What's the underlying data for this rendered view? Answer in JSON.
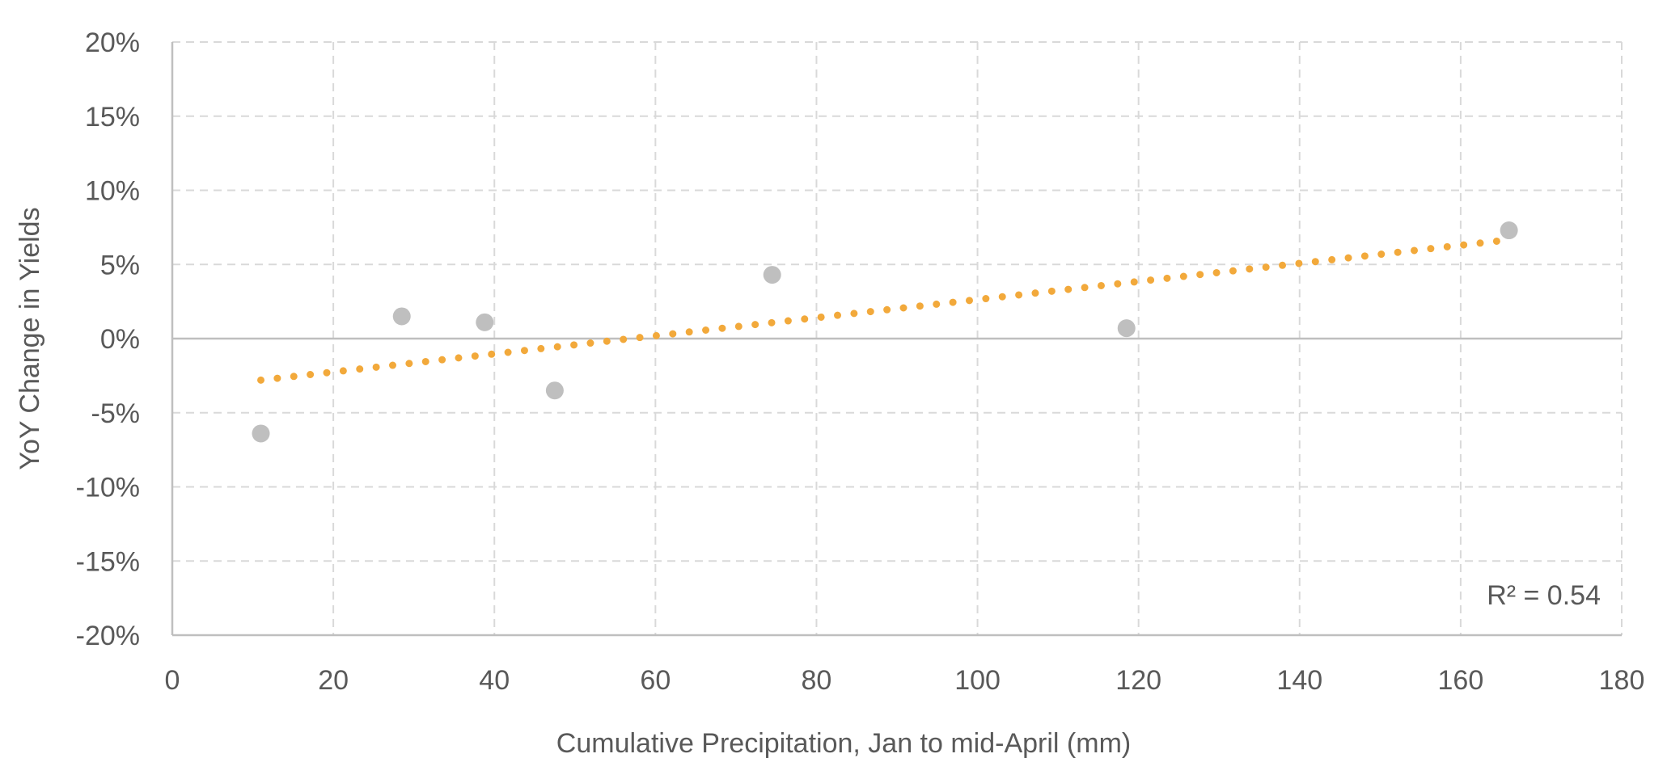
{
  "chart_data": {
    "type": "scatter",
    "title": "",
    "xlabel": "Cumulative Precipitation, Jan to mid-April (mm)",
    "ylabel": "YoY Change in Yields",
    "xlim": [
      0,
      180
    ],
    "ylim": [
      -20,
      20
    ],
    "x_ticks": [
      0,
      20,
      40,
      60,
      80,
      100,
      120,
      140,
      160,
      180
    ],
    "x_tick_labels": [
      "0",
      "20",
      "40",
      "60",
      "80",
      "100",
      "120",
      "140",
      "160",
      "180"
    ],
    "y_ticks": [
      20,
      15,
      10,
      5,
      0,
      -5,
      -10,
      -15,
      -20
    ],
    "y_tick_labels": [
      "20%",
      "15%",
      "10%",
      "5%",
      "0%",
      "-5%",
      "-10%",
      "-15%",
      "-20%"
    ],
    "grid": true,
    "legend": "none",
    "series": [
      {
        "points": [
          {
            "x": 11,
            "y": -6.4
          },
          {
            "x": 28.5,
            "y": 1.5
          },
          {
            "x": 38.8,
            "y": 1.1
          },
          {
            "x": 47.5,
            "y": -3.5
          },
          {
            "x": 74.5,
            "y": 4.3
          },
          {
            "x": 118.5,
            "y": 0.7
          },
          {
            "x": 166,
            "y": 7.3
          }
        ],
        "color": "#bfbfbf"
      }
    ],
    "trendline": {
      "kind": "linear",
      "x_range": [
        11,
        165
      ],
      "y_at_start": -2.8,
      "y_at_end": 6.6,
      "color": "#f2a93b",
      "style": "dotted"
    },
    "annotations": [
      {
        "text": "R² = 0.54"
      }
    ],
    "colors": {
      "grid": "#d9d9d9",
      "axis": "#bfbfbf",
      "text": "#595959"
    }
  }
}
